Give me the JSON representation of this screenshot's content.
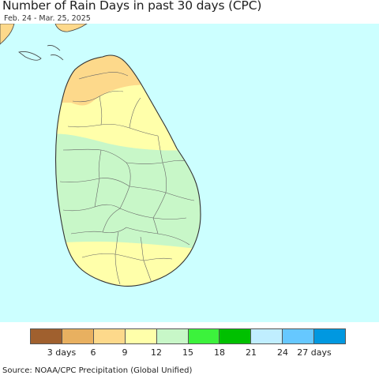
{
  "title": "Number of Rain Days in past 30 days (CPC)",
  "subtitle": "Feb. 24 - Mar. 25, 2025",
  "source": "Source: NOAA/CPC Precipitation (Global Unified)",
  "colors": {
    "ocean": "#ccffff",
    "land_dry": "#fdd98b",
    "land_mid": "#ffffaa",
    "land_wet": "#c8f7c8",
    "india_land": "#fdd98b",
    "border": "#555555"
  },
  "legend": {
    "colors": [
      "#a0602e",
      "#e8b060",
      "#fdd98b",
      "#ffffaa",
      "#c8f7c8",
      "#3cf23c",
      "#00c000",
      "#c0eeff",
      "#66c8ff",
      "#0098e0"
    ],
    "labels": [
      "3 days",
      "6",
      "9",
      "12",
      "15",
      "18",
      "21",
      "24",
      "27 days"
    ]
  }
}
